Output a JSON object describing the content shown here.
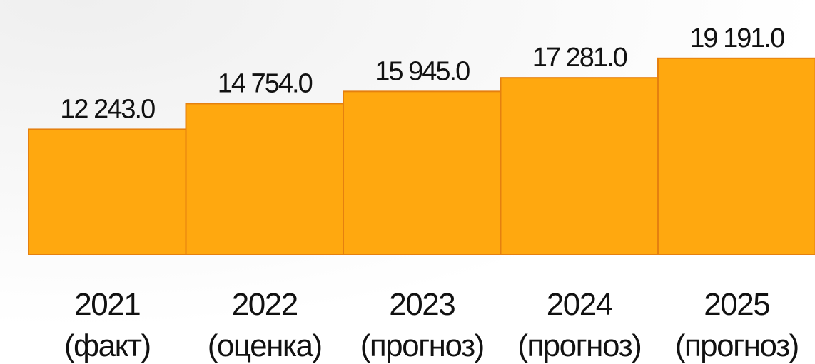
{
  "chart_data": {
    "type": "bar",
    "categories": [
      [
        "2021",
        "(факт)"
      ],
      [
        "2022",
        "(оценка)"
      ],
      [
        "2023",
        "(прогноз)"
      ],
      [
        "2024",
        "(прогноз)"
      ],
      [
        "2025",
        "(прогноз)"
      ]
    ],
    "values": [
      12243,
      14754,
      15945,
      17281,
      19191
    ],
    "value_labels": [
      "12 243.0",
      "14 754.0",
      "15 945.0",
      "17 281.0",
      "19 191.0"
    ],
    "color": "#ffa80f"
  }
}
